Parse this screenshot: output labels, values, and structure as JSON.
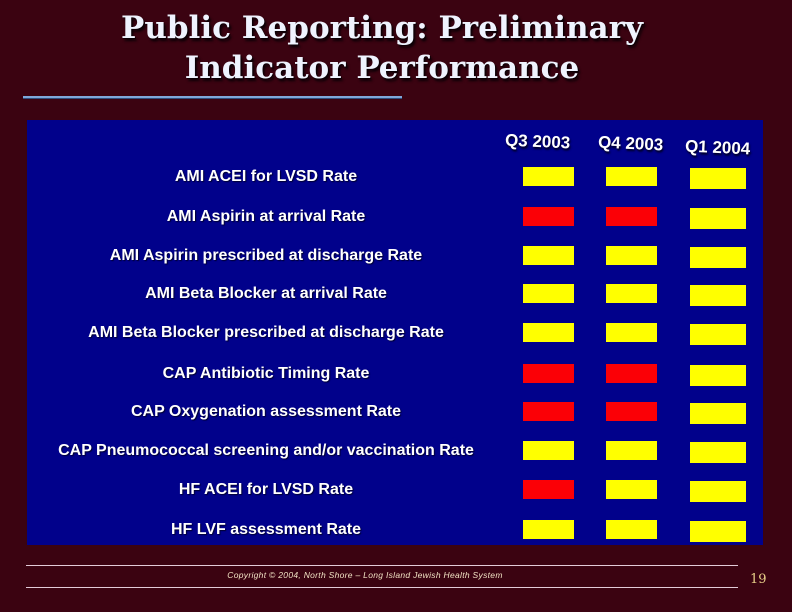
{
  "slide": {
    "title_lines": [
      "Public Reporting: Preliminary",
      "Indicator Performance"
    ],
    "footer_text": "Copyright © 2004, North Shore – Long Island Jewish Health System",
    "page_number": "19"
  },
  "chart_data": {
    "type": "table",
    "title": "Public Reporting: Preliminary Indicator Performance",
    "columns": [
      "Q3 2003",
      "Q4 2003",
      "Q1 2004"
    ],
    "rows": [
      {
        "label": "AMI ACEI for LVSD Rate",
        "statuses": [
          "yellow",
          "yellow",
          "yellow"
        ]
      },
      {
        "label": "AMI Aspirin at arrival Rate",
        "statuses": [
          "red",
          "red",
          "yellow"
        ]
      },
      {
        "label": "AMI Aspirin prescribed at discharge Rate",
        "statuses": [
          "yellow",
          "yellow",
          "yellow"
        ]
      },
      {
        "label": "AMI Beta Blocker at arrival Rate",
        "statuses": [
          "yellow",
          "yellow",
          "yellow"
        ]
      },
      {
        "label": "AMI Beta Blocker prescribed at discharge Rate",
        "statuses": [
          "yellow",
          "yellow",
          "yellow"
        ]
      },
      {
        "label": "CAP Antibiotic Timing Rate",
        "statuses": [
          "red",
          "red",
          "yellow"
        ]
      },
      {
        "label": "CAP Oxygenation assessment Rate",
        "statuses": [
          "red",
          "red",
          "yellow"
        ]
      },
      {
        "label": "CAP Pneumococcal screening and/or vaccination Rate",
        "statuses": [
          "yellow",
          "yellow",
          "yellow"
        ]
      },
      {
        "label": "HF ACEI for LVSD Rate",
        "statuses": [
          "red",
          "yellow",
          "yellow"
        ]
      },
      {
        "label": "HF LVF assessment Rate",
        "statuses": [
          "yellow",
          "yellow",
          "yellow"
        ]
      }
    ],
    "status_colors": {
      "yellow": "#FFFF00",
      "red": "#FB0006"
    },
    "layout_hints": {
      "legend_position": "none",
      "grid": "off"
    }
  },
  "colors": {
    "background": "#3B0311",
    "panel": "#01018B",
    "title_text": "#EFF3FE",
    "title_underline": "#7FA8DA",
    "footer_line": "#E3CBD8",
    "footer_text": "#F2E3C4",
    "page_number_text": "#EAD189"
  }
}
